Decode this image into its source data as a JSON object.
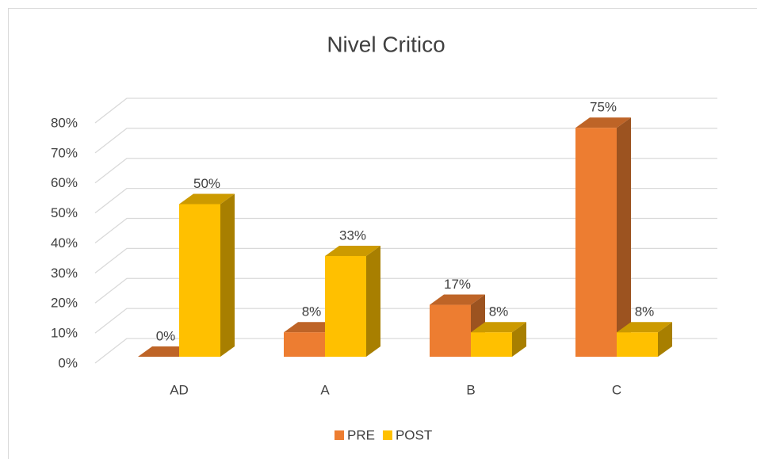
{
  "chart_data": {
    "type": "bar3d",
    "title": "Nivel Critico",
    "categories": [
      "AD",
      "A",
      "B",
      "C"
    ],
    "series": [
      {
        "name": "PRE",
        "color": "#ED7D31",
        "values": [
          0,
          8,
          17,
          75
        ],
        "value_labels": [
          "0%",
          "8%",
          "17%",
          "75%"
        ]
      },
      {
        "name": "POST",
        "color": "#FFC000",
        "values": [
          50,
          33,
          8,
          8
        ],
        "value_labels": [
          "50%",
          "33%",
          "8%",
          "8%"
        ]
      }
    ],
    "ylim": [
      0,
      80
    ],
    "yticks": [
      {
        "value": 0,
        "label": "0%"
      },
      {
        "value": 10,
        "label": "10%"
      },
      {
        "value": 20,
        "label": "20%"
      },
      {
        "value": 30,
        "label": "30%"
      },
      {
        "value": 40,
        "label": "40%"
      },
      {
        "value": 50,
        "label": "50%"
      },
      {
        "value": 60,
        "label": "60%"
      },
      {
        "value": 70,
        "label": "70%"
      },
      {
        "value": 80,
        "label": "80%"
      }
    ],
    "grid": true,
    "legend": "bottom"
  }
}
